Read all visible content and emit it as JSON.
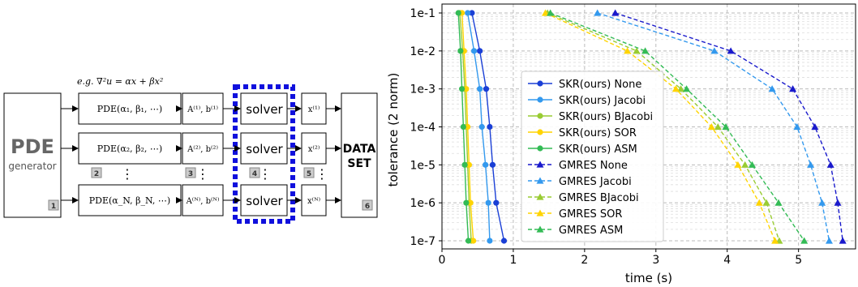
{
  "diagram": {
    "equation": "e.g. ∇²u = αx + βx²",
    "pde_title": "PDE",
    "pde_sub": "generator",
    "rows": [
      {
        "params": "PDE(α₁, β₁, ⋯)",
        "matrix": "A⁽¹⁾, b⁽¹⁾",
        "solver": "solver",
        "x": "x⁽¹⁾"
      },
      {
        "params": "PDE(α₂, β₂, ⋯)",
        "matrix": "A⁽²⁾, b⁽²⁾",
        "solver": "solver",
        "x": "x⁽²⁾"
      },
      {
        "params": "PDE(α_N, β_N, ⋯)",
        "matrix": "A⁽ᴺ⁾, b⁽ᴺ⁾",
        "solver": "solver",
        "x": "x⁽ᴺ⁾"
      }
    ],
    "dataset_line1": "DATA",
    "dataset_line2": "SET",
    "badges": [
      "1",
      "2",
      "3",
      "4",
      "5",
      "6"
    ],
    "dots": "⋮"
  },
  "chart_data": {
    "type": "line",
    "xlabel": "time (s)",
    "ylabel": "tolerance (2 norm)",
    "xlim": [
      0,
      5.8
    ],
    "x_ticks": [
      "0",
      "1",
      "2",
      "3",
      "4",
      "5"
    ],
    "y_ticks": [
      "1e-1",
      "1e-2",
      "1e-3",
      "1e-4",
      "1e-5",
      "1e-6",
      "1e-7"
    ],
    "y_scale": "log",
    "grid": true,
    "legend_position": "center",
    "series": [
      {
        "name": "SKR(ours) None",
        "color": "#1a3fd6",
        "dash": false,
        "marker": "circle",
        "x": [
          0.42,
          0.53,
          0.62,
          0.67,
          0.71,
          0.76,
          0.87
        ],
        "y": [
          "1e-1",
          "1e-2",
          "1e-3",
          "1e-4",
          "1e-5",
          "1e-6",
          "1e-7"
        ]
      },
      {
        "name": "SKR(ours) Jacobi",
        "color": "#3399ee",
        "dash": false,
        "marker": "circle",
        "x": [
          0.36,
          0.45,
          0.53,
          0.56,
          0.61,
          0.65,
          0.67
        ],
        "y": [
          "1e-1",
          "1e-2",
          "1e-3",
          "1e-4",
          "1e-5",
          "1e-6",
          "1e-7"
        ]
      },
      {
        "name": "SKR(ours) BJacobi",
        "color": "#99cc33",
        "dash": false,
        "marker": "circle",
        "x": [
          0.25,
          0.29,
          0.32,
          0.34,
          0.36,
          0.38,
          0.41
        ],
        "y": [
          "1e-1",
          "1e-2",
          "1e-3",
          "1e-4",
          "1e-5",
          "1e-6",
          "1e-7"
        ]
      },
      {
        "name": "SKR(ours) SOR",
        "color": "#ffd400",
        "dash": false,
        "marker": "circle",
        "x": [
          0.28,
          0.31,
          0.34,
          0.36,
          0.38,
          0.4,
          0.44
        ],
        "y": [
          "1e-1",
          "1e-2",
          "1e-3",
          "1e-4",
          "1e-5",
          "1e-6",
          "1e-7"
        ]
      },
      {
        "name": "SKR(ours) ASM",
        "color": "#33bb55",
        "dash": false,
        "marker": "circle",
        "x": [
          0.23,
          0.26,
          0.28,
          0.3,
          0.32,
          0.34,
          0.37
        ],
        "y": [
          "1e-1",
          "1e-2",
          "1e-3",
          "1e-4",
          "1e-5",
          "1e-6",
          "1e-7"
        ]
      },
      {
        "name": "GMRES None",
        "color": "#1a1acc",
        "dash": true,
        "marker": "triangle",
        "x": [
          2.43,
          4.05,
          4.92,
          5.23,
          5.45,
          5.55,
          5.62
        ],
        "y": [
          "1e-1",
          "1e-2",
          "1e-3",
          "1e-4",
          "1e-5",
          "1e-6",
          "1e-7"
        ]
      },
      {
        "name": "GMRES Jacobi",
        "color": "#3399ee",
        "dash": true,
        "marker": "triangle",
        "x": [
          2.18,
          3.82,
          4.63,
          4.98,
          5.17,
          5.33,
          5.43
        ],
        "y": [
          "1e-1",
          "1e-2",
          "1e-3",
          "1e-4",
          "1e-5",
          "1e-6",
          "1e-7"
        ]
      },
      {
        "name": "GMRES BJacobi",
        "color": "#99cc33",
        "dash": true,
        "marker": "triangle",
        "x": [
          1.48,
          2.73,
          3.35,
          3.87,
          4.25,
          4.55,
          4.73
        ],
        "y": [
          "1e-1",
          "1e-2",
          "1e-3",
          "1e-4",
          "1e-5",
          "1e-6",
          "1e-7"
        ]
      },
      {
        "name": "GMRES SOR",
        "color": "#ffd400",
        "dash": true,
        "marker": "triangle",
        "x": [
          1.45,
          2.6,
          3.28,
          3.78,
          4.15,
          4.45,
          4.67
        ],
        "y": [
          "1e-1",
          "1e-2",
          "1e-3",
          "1e-4",
          "1e-5",
          "1e-6",
          "1e-7"
        ]
      },
      {
        "name": "GMRES ASM",
        "color": "#33bb55",
        "dash": true,
        "marker": "triangle",
        "x": [
          1.52,
          2.85,
          3.43,
          3.98,
          4.35,
          4.72,
          5.08
        ],
        "y": [
          "1e-1",
          "1e-2",
          "1e-3",
          "1e-4",
          "1e-5",
          "1e-6",
          "1e-7"
        ]
      }
    ]
  }
}
